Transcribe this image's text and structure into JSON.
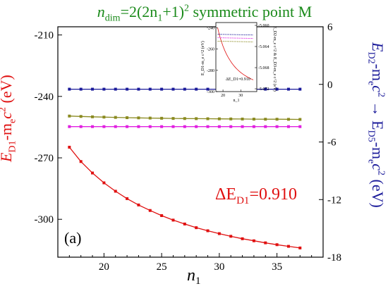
{
  "title": {
    "text_a": "n",
    "sub_a": "dim",
    "text_b": "=2(2n",
    "sub_b": "1",
    "text_c": "+1)",
    "sup_c": "2",
    "text_d": " symmetric point M"
  },
  "left_axis_label": {
    "main": "E",
    "sub1": "D1",
    "mid": "-m",
    "sub2": "e",
    "c": "c",
    "sup": "2",
    "unit": " (eV)"
  },
  "right_axis_label": {
    "e1": "E",
    "s1": "D2",
    "m1": "-m",
    "s2": "e",
    "c1": "c",
    "p1": "2",
    "arrow": " → E",
    "s3": "D5",
    "m2": "-m",
    "s4": "e",
    "c2": "c",
    "p2": "2",
    "unit": " (eV)"
  },
  "panel_label": "(a)",
  "annotation": {
    "delta": "ΔE",
    "sub": "D1",
    "value": "=0.910"
  },
  "x_axis_label": {
    "main": "n",
    "sub": "1"
  },
  "colors": {
    "red": "#e01010",
    "navy": "#1a1a9a",
    "olive": "#8a8a20",
    "magenta": "#e020e0",
    "green": "#1a8a1a"
  },
  "chart_data": {
    "type": "line",
    "x": [
      17,
      18,
      19,
      20,
      21,
      22,
      23,
      24,
      25,
      26,
      27,
      28,
      29,
      30,
      31,
      32,
      33,
      34,
      35,
      36,
      37
    ],
    "xlim": [
      16,
      39
    ],
    "xticks": [
      20,
      25,
      30,
      35
    ],
    "left_ylim": [
      -318.5,
      -206
    ],
    "left_yticks": [
      -210,
      -240,
      -270,
      -300
    ],
    "right_ylim": [
      -18,
      6
    ],
    "right_yticks": [
      6,
      0,
      -6,
      -12,
      -18
    ],
    "series": [
      {
        "axis": "left",
        "color": "#e01010",
        "values": [
          -264.8,
          -271.8,
          -277.4,
          -282.2,
          -286.3,
          -289.9,
          -293.0,
          -295.7,
          -298.2,
          -300.4,
          -302.3,
          -304.1,
          -305.6,
          -307.0,
          -308.3,
          -309.5,
          -310.5,
          -311.5,
          -312.4,
          -313.2,
          -314.0
        ]
      },
      {
        "axis": "right",
        "color": "#1a1a9a",
        "values": [
          -0.5,
          -0.5,
          -0.5,
          -0.5,
          -0.5,
          -0.5,
          -0.5,
          -0.5,
          -0.5,
          -0.5,
          -0.5,
          -0.5,
          -0.5,
          -0.5,
          -0.5,
          -0.5,
          -0.5,
          -0.5,
          -0.5,
          -0.5,
          -0.5
        ]
      },
      {
        "axis": "right",
        "color": "#8a8a20",
        "values": [
          -3.3,
          -3.34,
          -3.38,
          -3.41,
          -3.44,
          -3.47,
          -3.49,
          -3.51,
          -3.53,
          -3.55,
          -3.56,
          -3.57,
          -3.58,
          -3.59,
          -3.6,
          -3.61,
          -3.62,
          -3.63,
          -3.63,
          -3.64,
          -3.65
        ]
      },
      {
        "axis": "right",
        "color": "#e020e0",
        "values": [
          -4.4,
          -4.4,
          -4.4,
          -4.4,
          -4.4,
          -4.4,
          -4.4,
          -4.4,
          -4.4,
          -4.4,
          -4.4,
          -4.4,
          -4.4,
          -4.4,
          -4.4,
          -4.4,
          -4.4,
          -4.4,
          -4.4,
          -4.4,
          -4.4
        ]
      }
    ],
    "inset": {
      "xticks": [
        20,
        30
      ],
      "xlim": [
        16,
        39
      ],
      "left_yticks": [
        -240,
        -260,
        -280,
        -300
      ],
      "left_ylim": [
        -300,
        -235
      ],
      "right_yticks": [
        "-5.060",
        "-5.064",
        "-5.068",
        "-5.072"
      ],
      "left_label": "E_D1-m_e c^2 (eV)",
      "right_label": "E_D2-m_e c^2 & E_D3-m_e c^2 (eV)",
      "xlabel": "n_1",
      "annotation": "ΔE_D1=0.910"
    }
  }
}
